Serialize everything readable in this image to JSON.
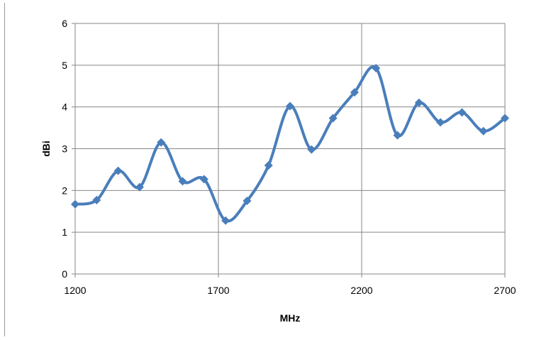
{
  "chart_data": {
    "type": "line",
    "title": "",
    "xlabel": "MHz",
    "ylabel": "dBi",
    "xlim": [
      1200,
      2700
    ],
    "ylim": [
      0,
      6
    ],
    "x_ticks": [
      1200,
      1700,
      2200,
      2700
    ],
    "y_ticks": [
      0,
      1,
      2,
      3,
      4,
      5,
      6
    ],
    "grid": true,
    "smooth": true,
    "marker": "diamond",
    "series_color": "#4a7ebb",
    "series": [
      {
        "x": [
          1200,
          1275,
          1350,
          1425,
          1500,
          1575,
          1650,
          1725,
          1800,
          1875,
          1950,
          2025,
          2100,
          2175,
          2250,
          2325,
          2400,
          2475,
          2550,
          2625,
          2700
        ],
        "y": [
          1.67,
          1.77,
          2.47,
          2.08,
          3.15,
          2.22,
          2.27,
          1.28,
          1.75,
          2.6,
          4.02,
          2.98,
          3.73,
          4.35,
          4.93,
          3.32,
          4.1,
          3.63,
          3.87,
          3.42,
          3.73
        ]
      }
    ]
  }
}
